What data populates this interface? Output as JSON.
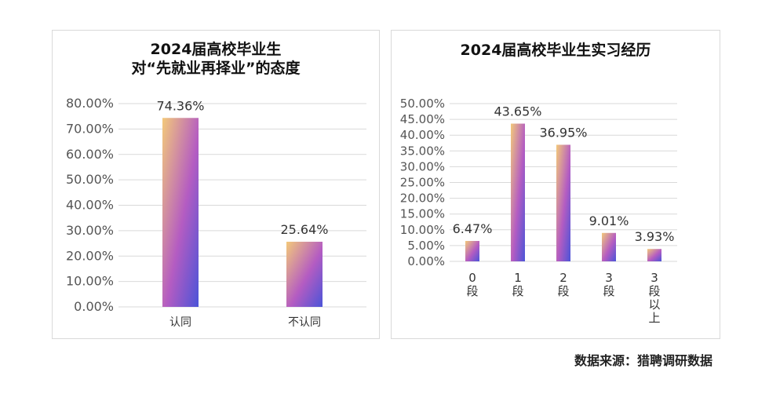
{
  "colors": {
    "grad_top": "#f3c97a",
    "grad_mid": "#b45cc2",
    "grad_bottom": "#4b54d8",
    "gridline": "#d9d9d9",
    "axis_text": "#555555"
  },
  "source_label": "数据来源：猎聘调研数据",
  "chart_data": [
    {
      "type": "bar",
      "title": "2024届高校毕业生",
      "subtitle": "对“先就业再择业”的态度",
      "categories": [
        "认同",
        "不认同"
      ],
      "values": [
        74.36,
        25.64
      ],
      "value_labels": [
        "74.36%",
        "25.64%"
      ],
      "ylim": [
        0,
        80
      ],
      "yticks": [
        "0.00%",
        "10.00%",
        "20.00%",
        "30.00%",
        "40.00%",
        "50.00%",
        "60.00%",
        "70.00%",
        "80.00%"
      ],
      "grid": true
    },
    {
      "type": "bar",
      "title": "2024届高校毕业生实习经历",
      "categories": [
        "0段",
        "1段",
        "2段",
        "3段",
        "3段以上"
      ],
      "values": [
        6.47,
        43.65,
        36.95,
        9.01,
        3.93
      ],
      "value_labels": [
        "6.47%",
        "43.65%",
        "36.95%",
        "9.01%",
        "3.93%"
      ],
      "ylim": [
        0,
        50
      ],
      "yticks": [
        "0.00%",
        "5.00%",
        "10.00%",
        "15.00%",
        "20.00%",
        "25.00%",
        "30.00%",
        "35.00%",
        "40.00%",
        "45.00%",
        "50.00%"
      ],
      "grid": true
    }
  ]
}
